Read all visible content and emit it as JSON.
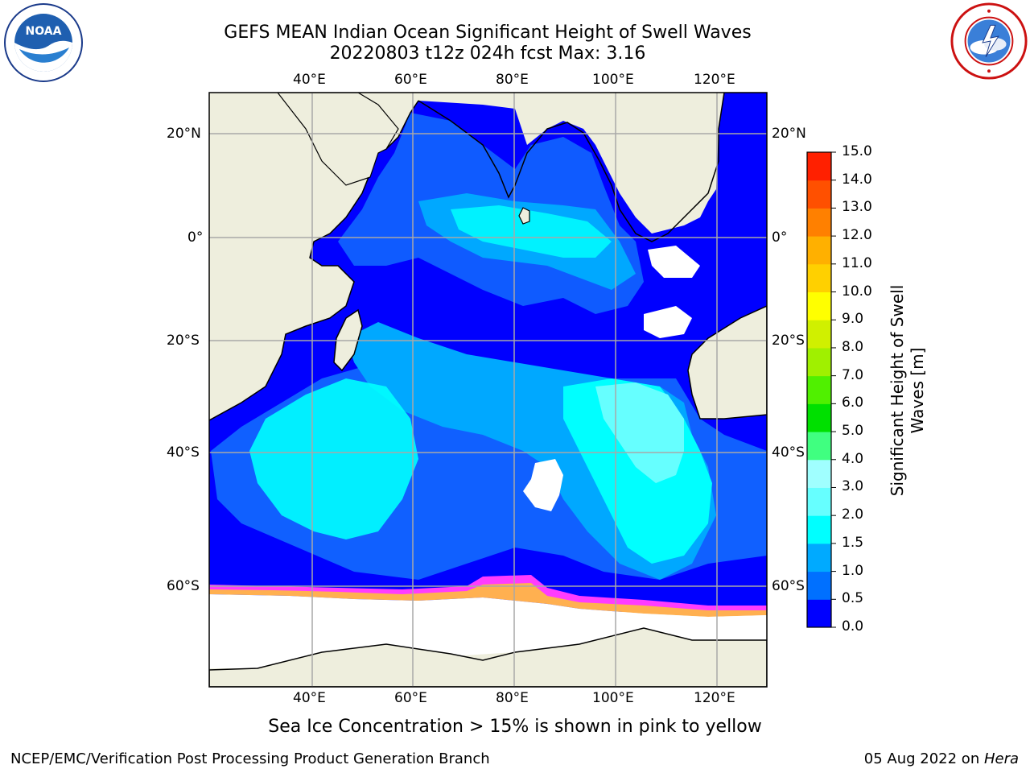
{
  "title": "GEFS MEAN Indian Ocean Significant Height of Swell Waves",
  "subtitle": "20220803 t12z 024h fcst   Max: 3.16",
  "caption": "Sea Ice Concentration > 15% is shown in pink to yellow",
  "footer": {
    "left": "NCEP/EMC/Verification Post Processing Product Generation Branch",
    "date": "05 Aug 2022 on ",
    "machine": "Hera"
  },
  "logos": {
    "left": "noaa-logo",
    "right": "nws-logo"
  },
  "map": {
    "lon_labels": [
      "40°E",
      "60°E",
      "80°E",
      "100°E",
      "120°E"
    ],
    "lat_labels": [
      "20°N",
      "0°",
      "20°S",
      "40°S",
      "60°S"
    ]
  },
  "colorbar": {
    "title_line1": "Significant Height of Swell",
    "title_line2": "Waves [m]",
    "ticks": [
      "0.0",
      "0.5",
      "1.0",
      "1.5",
      "2.0",
      "3.0",
      "4.0",
      "5.0",
      "6.0",
      "7.0",
      "8.0",
      "9.0",
      "10.0",
      "11.0",
      "12.0",
      "13.0",
      "14.0",
      "15.0"
    ],
    "colors": [
      "#0000ff",
      "#0070ff",
      "#00aaff",
      "#00ffff",
      "#66ffff",
      "#a0ffff",
      "#40ff80",
      "#00e000",
      "#50f000",
      "#a0f000",
      "#d0f000",
      "#ffff00",
      "#ffd000",
      "#ffb000",
      "#ff8000",
      "#ff5000",
      "#ff2000"
    ]
  },
  "palette": {
    "land": "#eeeedd",
    "ocean_low": "#0000ff",
    "ocean_mid": "#1060ff",
    "swell_1": "#00a8ff",
    "swell_2": "#00ffff",
    "swell_3": "#66ffff",
    "sea_ice_pink": "#ff3cff",
    "sea_ice_orange": "#ffb050",
    "grid": "#a8a8a8"
  }
}
